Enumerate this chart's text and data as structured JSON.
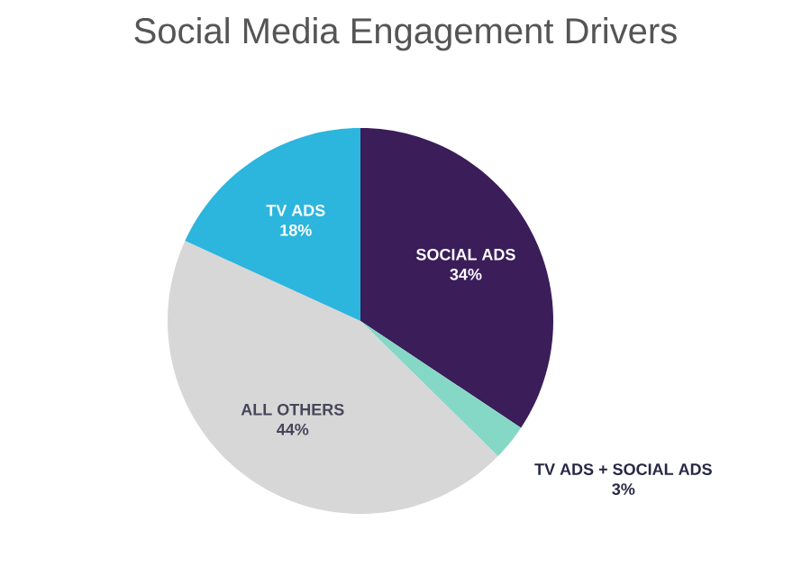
{
  "chart_data": {
    "type": "pie",
    "title": "Social Media Engagement Drivers",
    "categories": [
      "SOCIAL ADS",
      "TV ADS + SOCIAL ADS",
      "ALL OTHERS",
      "TV ADS"
    ],
    "values": [
      34,
      3,
      44,
      18
    ],
    "value_labels": [
      "34%",
      "3%",
      "44%",
      "18%"
    ],
    "colors": [
      "#3b1d5a",
      "#86d8c6",
      "#d7d7d7",
      "#2cb5dd"
    ]
  }
}
